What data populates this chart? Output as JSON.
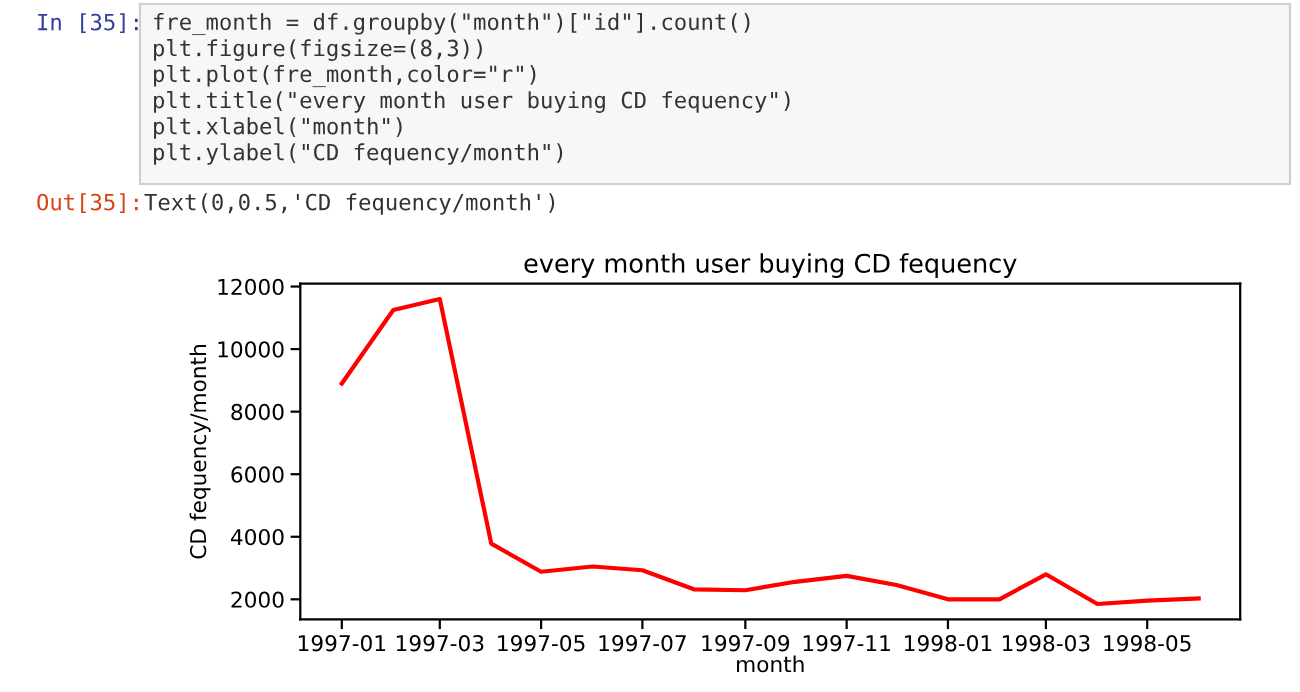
{
  "chart_data": {
    "type": "line",
    "title": "every month user buying CD fequency",
    "xlabel": "month",
    "ylabel": "CD fequency/month",
    "x": [
      "1997-01",
      "1997-02",
      "1997-03",
      "1997-04",
      "1997-05",
      "1997-06",
      "1997-07",
      "1997-08",
      "1997-09",
      "1997-10",
      "1997-11",
      "1997-12",
      "1998-01",
      "1998-02",
      "1998-03",
      "1998-04",
      "1998-05",
      "1998-06"
    ],
    "series": [
      {
        "color": "#ff0000",
        "values": [
          8900,
          11250,
          11600,
          3780,
          2880,
          3050,
          2930,
          2320,
          2290,
          2560,
          2750,
          2460,
          2000,
          2000,
          2800,
          1850,
          1960,
          2030
        ]
      }
    ],
    "xlim": [
      "1996-12-07",
      "1998-06-26"
    ],
    "xticks": [
      "1997-01",
      "1997-03",
      "1997-05",
      "1997-07",
      "1997-09",
      "1997-11",
      "1998-01",
      "1998-03",
      "1998-05"
    ],
    "ylim": [
      1360,
      12090
    ],
    "yticks": [
      2000,
      4000,
      6000,
      8000,
      10000,
      12000
    ],
    "grid": false,
    "legend": false,
    "marker": "none",
    "line_style": "solid",
    "annotations": [
      "In [35]:",
      "fre_month = df.groupby(\"month\")[\"id\"].count()",
      "plt.figure(figsize=(8,3))",
      "plt.plot(fre_month,color=\"r\")",
      "plt.title(\"every month user buying CD fequency\")",
      "plt.xlabel(\"month\")",
      "plt.ylabel(\"CD fequency/month\")",
      "Out[35]:",
      "Text(0,0.5,'CD fequency/month')"
    ]
  }
}
